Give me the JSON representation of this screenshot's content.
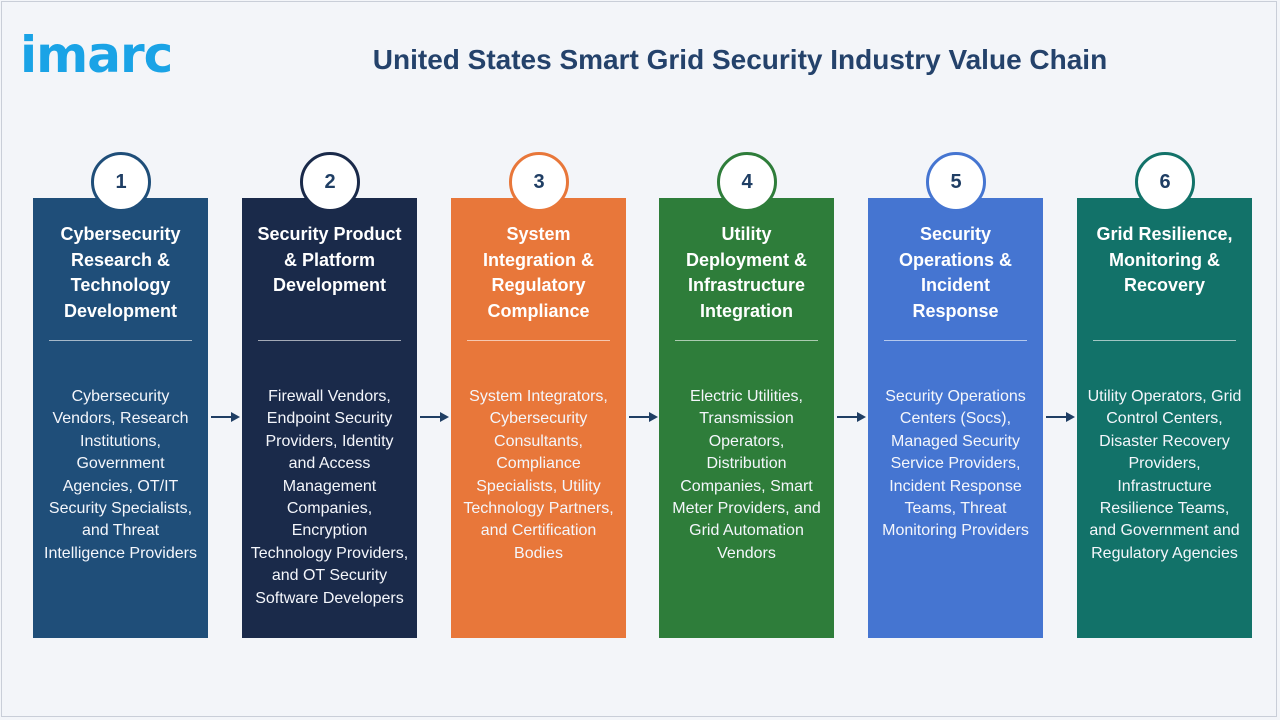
{
  "brand": {
    "logo_text": "imarc",
    "logo_color": "#1aa3e6"
  },
  "title": "United States Smart Grid Security Industry Value Chain",
  "stages": [
    {
      "number": "1",
      "title": "Cybersecurity Research & Technology Development",
      "body": "Cybersecurity Vendors, Research Institutions, Government Agencies, OT/IT Security Specialists, and Threat Intelligence Providers",
      "color": "#1f4e79",
      "ring_color": "#1f4e79"
    },
    {
      "number": "2",
      "title": "Security Product & Platform Development",
      "body": "Firewall Vendors, Endpoint Security Providers, Identity and Access Management Companies, Encryption Technology Providers, and OT Security Software Developers",
      "color": "#1a2a4a",
      "ring_color": "#1a2a4a"
    },
    {
      "number": "3",
      "title": "System Integration & Regulatory Compliance",
      "body": "System Integrators, Cybersecurity Consultants, Compliance Specialists, Utility Technology Partners, and Certification Bodies",
      "color": "#e8773a",
      "ring_color": "#e8773a"
    },
    {
      "number": "4",
      "title": "Utility Deployment & Infrastructure Integration",
      "body": "Electric Utilities, Transmission Operators, Distribution Companies, Smart Meter Providers, and Grid Automation Vendors",
      "color": "#2e7d3a",
      "ring_color": "#2e7d3a"
    },
    {
      "number": "5",
      "title": "Security Operations & Incident Response",
      "body": "Security Operations Centers (Socs), Managed Security Service Providers, Incident Response Teams, Threat Monitoring Providers",
      "color": "#4575d1",
      "ring_color": "#4575d1"
    },
    {
      "number": "6",
      "title": "Grid Resilience, Monitoring & Recovery",
      "body": "Utility Operators, Grid Control Centers, Disaster Recovery Providers, Infrastructure Resilience Teams, and Government and Regulatory Agencies",
      "color": "#127269",
      "ring_color": "#127269"
    }
  ],
  "arrow_color": "#1f3e64"
}
